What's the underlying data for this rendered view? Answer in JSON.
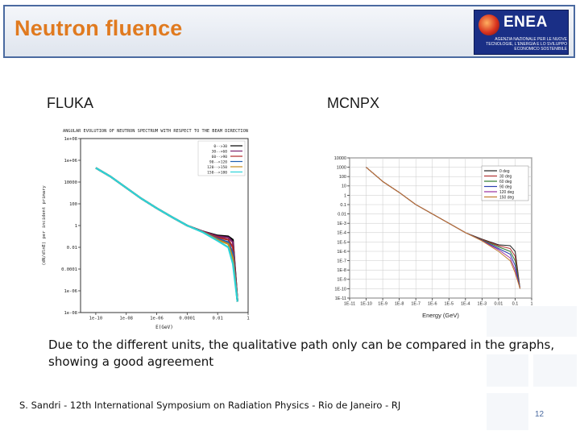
{
  "slide": {
    "title": "Neutron fluence",
    "logo": {
      "name": "ENEA",
      "text": "AGENZIA NAZIONALE PER LE NUOVE TECNOLOGIE, L'ENERGIA E LO SVILUPPO ECONOMICO SOSTENIBILE",
      "brand_color": "#1a2f86"
    },
    "label_left": "FLUKA",
    "label_right": "MCNPX",
    "caption": "Due to the different units, the qualitative path only can be compared in the graphs, showing a good agreement",
    "footer": "S. Sandri - 12th International Symposium on Radiation Physics - Rio de Janeiro - RJ",
    "page_number": "12",
    "title_color": "#e07a1f",
    "frame_color": "#4a6aa0"
  },
  "chart_data": [
    {
      "type": "line",
      "title": "ANGULAR EVOLUTION OF NEUTRON SPECTRUM WITH RESPECT TO THE BEAM DIRECTION",
      "xlabel": "E(GeV)",
      "ylabel": "(dN/dlnE) per incident primary",
      "x_scale": "log",
      "y_scale": "log",
      "xlim": [
        1e-11,
        1
      ],
      "ylim": [
        1e-08,
        100000000.0
      ],
      "x_ticks": [
        "1e-10",
        "1e-08",
        "1e-06",
        "0.0001",
        "0.01",
        "1"
      ],
      "y_ticks": [
        "1e-08",
        "1e-06",
        "0.0001",
        "0.01",
        "1",
        "100",
        "10000",
        "1e+06",
        "1e+08"
      ],
      "legend_position": "top-right",
      "series": [
        {
          "name": "0-->30",
          "color": "#000000",
          "x": [
            1e-10,
            1e-09,
            1e-08,
            1e-07,
            1e-06,
            1e-05,
            0.0001,
            0.001,
            0.01,
            0.05,
            0.1,
            0.2
          ],
          "y": [
            200000.0,
            30000.0,
            3000.0,
            300,
            40,
            6,
            1,
            0.3,
            0.12,
            0.1,
            0.05,
            1e-07
          ]
        },
        {
          "name": "30-->60",
          "color": "#7a1f6a",
          "x": [
            1e-10,
            1e-09,
            1e-08,
            1e-07,
            1e-06,
            1e-05,
            0.0001,
            0.001,
            0.01,
            0.05,
            0.1,
            0.2
          ],
          "y": [
            200000.0,
            30000.0,
            3000.0,
            300,
            40,
            6,
            1,
            0.3,
            0.1,
            0.08,
            0.03,
            1e-07
          ]
        },
        {
          "name": "60-->90",
          "color": "#b02828",
          "x": [
            1e-10,
            1e-09,
            1e-08,
            1e-07,
            1e-06,
            1e-05,
            0.0001,
            0.001,
            0.01,
            0.05,
            0.1,
            0.2
          ],
          "y": [
            200000.0,
            30000.0,
            3000.0,
            300,
            40,
            6,
            1,
            0.28,
            0.08,
            0.05,
            0.01,
            1e-07
          ]
        },
        {
          "name": "90-->120",
          "color": "#1f5fb0",
          "x": [
            1e-10,
            1e-09,
            1e-08,
            1e-07,
            1e-06,
            1e-05,
            0.0001,
            0.001,
            0.01,
            0.05,
            0.1,
            0.2
          ],
          "y": [
            200000.0,
            30000.0,
            3000.0,
            300,
            40,
            6,
            1,
            0.27,
            0.06,
            0.03,
            0.003,
            1e-07
          ]
        },
        {
          "name": "120-->150",
          "color": "#c88a1a",
          "x": [
            1e-10,
            1e-09,
            1e-08,
            1e-07,
            1e-06,
            1e-05,
            0.0001,
            0.001,
            0.01,
            0.05,
            0.1,
            0.2
          ],
          "y": [
            200000.0,
            30000.0,
            3000.0,
            300,
            40,
            6,
            1,
            0.26,
            0.05,
            0.02,
            0.001,
            1e-07
          ]
        },
        {
          "name": "150-->180",
          "color": "#2bd3d8",
          "x": [
            1e-10,
            1e-09,
            1e-08,
            1e-07,
            1e-06,
            1e-05,
            0.0001,
            0.001,
            0.01,
            0.05,
            0.1,
            0.2
          ],
          "y": [
            200000.0,
            30000.0,
            3000.0,
            300,
            40,
            6,
            1,
            0.25,
            0.04,
            0.01,
            0.0003,
            1e-07
          ]
        }
      ]
    },
    {
      "type": "line",
      "xlabel": "Energy (GeV)",
      "ylabel": "",
      "x_scale": "log",
      "y_scale": "log",
      "xlim": [
        1e-11,
        1
      ],
      "ylim": [
        1e-11,
        10000
      ],
      "x_ticks": [
        "1E-11",
        "1E-10",
        "1E-9",
        "1E-8",
        "1E-7",
        "1E-6",
        "1E-5",
        "1E-4",
        "1E-3",
        "0.01",
        "0.1",
        "1"
      ],
      "y_ticks": [
        "1E-11",
        "1E-10",
        "1E-9",
        "1E-8",
        "1E-7",
        "1E-6",
        "1E-5",
        "1E-4",
        "1E-3",
        "0.01",
        "0.1",
        "1",
        "10",
        "100",
        "1000",
        "10000"
      ],
      "legend_position": "top-right",
      "series": [
        {
          "name": "0 deg",
          "color": "#202020",
          "x": [
            1e-10,
            1e-09,
            1e-08,
            1e-07,
            1e-06,
            1e-05,
            0.0001,
            0.001,
            0.01,
            0.05,
            0.1,
            0.2
          ],
          "y": [
            1000,
            30,
            2,
            0.1,
            0.01,
            0.001,
            0.0001,
            2e-05,
            5e-06,
            4e-06,
            1e-06,
            1e-10
          ]
        },
        {
          "name": "30 deg",
          "color": "#b03030",
          "x": [
            1e-10,
            1e-09,
            1e-08,
            1e-07,
            1e-06,
            1e-05,
            0.0001,
            0.001,
            0.01,
            0.05,
            0.1,
            0.2
          ],
          "y": [
            1000,
            30,
            2,
            0.1,
            0.01,
            0.001,
            0.0001,
            1.8e-05,
            4e-06,
            2e-06,
            3e-07,
            1e-10
          ]
        },
        {
          "name": "60 deg",
          "color": "#2e7a2e",
          "x": [
            1e-10,
            1e-09,
            1e-08,
            1e-07,
            1e-06,
            1e-05,
            0.0001,
            0.001,
            0.01,
            0.05,
            0.1,
            0.2
          ],
          "y": [
            1000,
            30,
            2,
            0.1,
            0.01,
            0.001,
            0.0001,
            1.6e-05,
            3e-06,
            1e-06,
            1e-07,
            1e-10
          ]
        },
        {
          "name": "90 deg",
          "color": "#2a3fb0",
          "x": [
            1e-10,
            1e-09,
            1e-08,
            1e-07,
            1e-06,
            1e-05,
            0.0001,
            0.001,
            0.01,
            0.05,
            0.1,
            0.2
          ],
          "y": [
            1000,
            30,
            2,
            0.1,
            0.01,
            0.001,
            0.0001,
            1.5e-05,
            2e-06,
            5e-07,
            3e-08,
            1e-10
          ]
        },
        {
          "name": "120 deg",
          "color": "#9a2fa0",
          "x": [
            1e-10,
            1e-09,
            1e-08,
            1e-07,
            1e-06,
            1e-05,
            0.0001,
            0.001,
            0.01,
            0.05,
            0.1,
            0.2
          ],
          "y": [
            1000,
            30,
            2,
            0.1,
            0.01,
            0.001,
            0.0001,
            1.4e-05,
            1.5e-06,
            2e-07,
            1e-08,
            1e-10
          ]
        },
        {
          "name": "150 deg",
          "color": "#c07a2a",
          "x": [
            1e-10,
            1e-09,
            1e-08,
            1e-07,
            1e-06,
            1e-05,
            0.0001,
            0.001,
            0.01,
            0.05,
            0.1,
            0.2
          ],
          "y": [
            1000,
            30,
            2,
            0.1,
            0.01,
            0.001,
            0.0001,
            1.3e-05,
            1e-06,
            1e-07,
            5e-09,
            1e-10
          ]
        }
      ]
    }
  ]
}
